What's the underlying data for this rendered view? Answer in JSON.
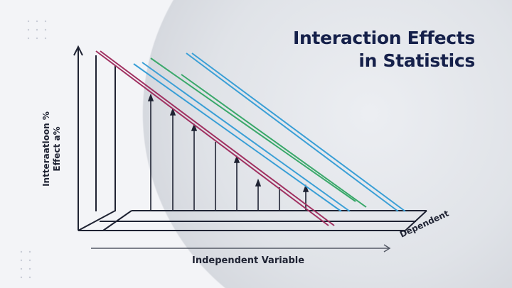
{
  "title": {
    "line1": "Interaction Effects",
    "line2": "in Statistics"
  },
  "axes": {
    "y_label_line1": "Intteraatloon %",
    "y_label_line2": "Effect a%",
    "x_label": "Independent Variable",
    "z_label": "Dependent"
  },
  "colors": {
    "title": "#15204a",
    "magenta": "#a03060",
    "blue": "#3a9fd6",
    "green": "#3aa86a",
    "axis": "#1f2333"
  }
}
